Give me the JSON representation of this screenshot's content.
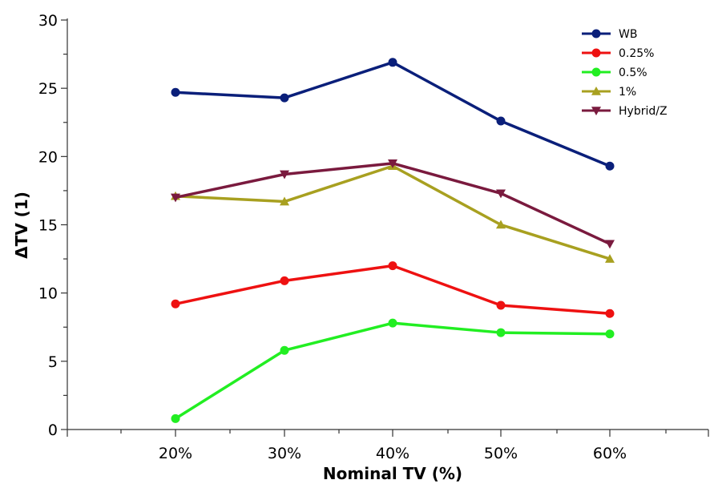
{
  "chart_data": {
    "type": "line",
    "title": "",
    "xlabel": "Nominal TV (%)",
    "ylabel": "ΔTV (1)",
    "categories": [
      "20%",
      "30%",
      "40%",
      "50%",
      "60%"
    ],
    "ylim": [
      0,
      30
    ],
    "yticks": [
      "0",
      "5",
      "10",
      "15",
      "20",
      "25",
      "30"
    ],
    "grid": false,
    "legend_position": "top-right",
    "series": [
      {
        "name": "WB",
        "color": "#0a1f7a",
        "marker": "circle",
        "values": [
          24.7,
          24.3,
          26.9,
          22.6,
          19.3
        ]
      },
      {
        "name": "0.25%",
        "color": "#ee1111",
        "marker": "circle",
        "values": [
          9.2,
          10.9,
          12.0,
          9.1,
          8.5
        ]
      },
      {
        "name": "0.5%",
        "color": "#22ee22",
        "marker": "circle",
        "values": [
          0.8,
          5.8,
          7.8,
          7.1,
          7.0
        ]
      },
      {
        "name": "1%",
        "color": "#a8a020",
        "marker": "triangle-up",
        "values": [
          17.1,
          16.7,
          19.3,
          15.0,
          12.5
        ]
      },
      {
        "name": "Hybrid/Z",
        "color": "#7a1a3e",
        "marker": "triangle-down",
        "values": [
          17.0,
          18.7,
          19.5,
          17.3,
          13.6
        ]
      }
    ]
  }
}
